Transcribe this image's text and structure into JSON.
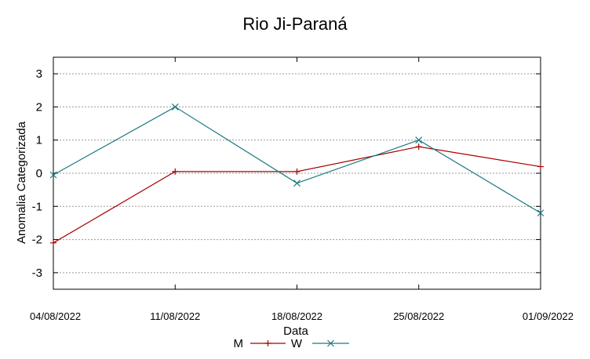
{
  "chart_data": {
    "type": "line",
    "title": "Rio Ji-Paraná",
    "xlabel": "Data",
    "ylabel": "Anomalia Categorizada",
    "categories": [
      "04/08/2022",
      "11/08/2022",
      "18/08/2022",
      "25/08/2022",
      "01/09/2022"
    ],
    "ylim": [
      -3.5,
      3.5
    ],
    "yticks": [
      "3",
      "2",
      "1",
      "0",
      "-1",
      "-2",
      "-3"
    ],
    "ytick_values": [
      3,
      2,
      1,
      0,
      -1,
      -2,
      -3
    ],
    "grid": true,
    "legend_position": "bottom",
    "series": [
      {
        "name": "M",
        "values": [
          -2.1,
          0.05,
          0.05,
          0.8,
          0.2
        ],
        "color": "#aa0000",
        "marker": "plus"
      },
      {
        "name": "W",
        "values": [
          -0.05,
          2.0,
          -0.3,
          1.0,
          -1.2
        ],
        "color": "#1a7a80",
        "marker": "x"
      }
    ]
  }
}
